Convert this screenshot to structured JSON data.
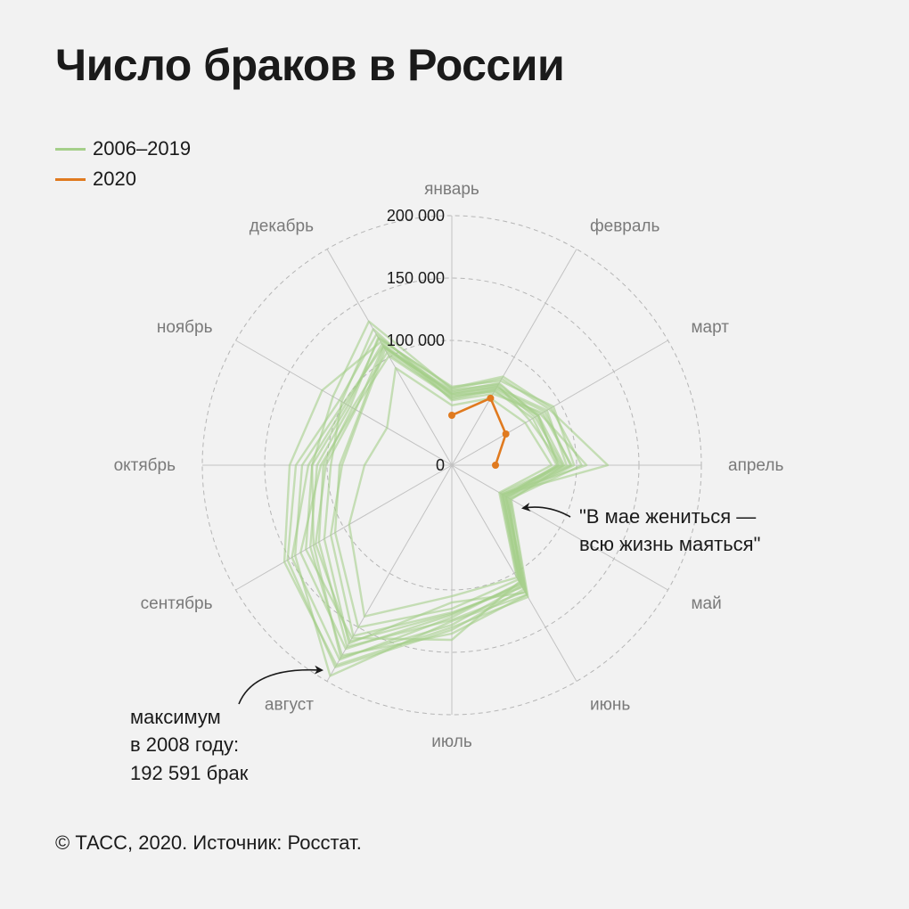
{
  "title": "Число браков в России",
  "legend": [
    {
      "label": "2006–2019",
      "color": "#a5cf8a"
    },
    {
      "label": "2020",
      "color": "#e07a1f"
    }
  ],
  "source": "© ТАСС, 2020. Источник: Росстат.",
  "annotations": {
    "may": [
      "\"В мае жениться —",
      "всю жизнь маяться\""
    ],
    "max": [
      "максимум",
      "в 2008 году:",
      "192 591 брак"
    ]
  },
  "chart_data": {
    "type": "radar",
    "axis_labels": [
      "январь",
      "февраль",
      "март",
      "апрель",
      "май",
      "июнь",
      "июль",
      "август",
      "сентябрь",
      "октябрь",
      "ноябрь",
      "декабрь"
    ],
    "r_ticks": [
      {
        "value": 0,
        "label": "0"
      },
      {
        "value": 100000,
        "label": "100 000"
      },
      {
        "value": 150000,
        "label": "150 000"
      },
      {
        "value": 200000,
        "label": "200 000"
      }
    ],
    "r_max": 200000,
    "series_background": [
      {
        "values": [
          60000,
          75000,
          80000,
          85000,
          50000,
          120000,
          125000,
          195000,
          145000,
          120000,
          100000,
          110000
        ]
      },
      {
        "values": [
          57000,
          72000,
          88000,
          92000,
          48000,
          115000,
          132000,
          187000,
          152000,
          125000,
          104000,
          121000
        ]
      },
      {
        "values": [
          63000,
          78000,
          94000,
          98000,
          53000,
          112000,
          128000,
          178000,
          128000,
          112000,
          96000,
          117000
        ]
      },
      {
        "values": [
          54000,
          70000,
          82000,
          108000,
          46000,
          110000,
          120000,
          170000,
          140000,
          105000,
          90000,
          101000
        ]
      },
      {
        "values": [
          61000,
          80000,
          90000,
          125000,
          47000,
          108000,
          140000,
          160000,
          135000,
          112000,
          110000,
          133000
        ]
      },
      {
        "values": [
          52000,
          66000,
          84000,
          96000,
          51000,
          118000,
          110000,
          165000,
          118000,
          97000,
          102000,
          126000
        ]
      },
      {
        "values": [
          58000,
          74000,
          72000,
          88000,
          45000,
          106000,
          115000,
          150000,
          108000,
          90000,
          85000,
          109000
        ]
      },
      {
        "values": [
          56000,
          68000,
          80000,
          90000,
          55000,
          122000,
          130000,
          185000,
          155000,
          130000,
          120000,
          114000
        ]
      },
      {
        "values": [
          55000,
          71000,
          86000,
          95000,
          50000,
          117000,
          124000,
          168000,
          123000,
          103000,
          92000,
          104000
        ]
      },
      {
        "values": [
          59000,
          76000,
          79000,
          86000,
          52000,
          113000,
          118000,
          158000,
          112000,
          88000,
          84000,
          107000
        ]
      },
      {
        "values": [
          48000,
          62000,
          68000,
          80000,
          44000,
          104000,
          105000,
          140000,
          95000,
          70000,
          60000,
          90000
        ]
      },
      {
        "values": [
          53000,
          69000,
          75000,
          84000,
          49000,
          109000,
          122000,
          180000,
          148000,
          115000,
          98000,
          112000
        ]
      },
      {
        "values": [
          62000,
          82000,
          92000,
          104000,
          54000,
          120000,
          135000,
          176000,
          131000,
          108000,
          94000,
          118000
        ]
      },
      {
        "values": [
          57000,
          73000,
          77000,
          89000,
          47000,
          111000,
          119000,
          163000,
          126000,
          101000,
          89000,
          110000
        ]
      }
    ],
    "series_2020": {
      "name": "2020",
      "values": [
        40000,
        62000,
        50000,
        35000
      ]
    }
  }
}
